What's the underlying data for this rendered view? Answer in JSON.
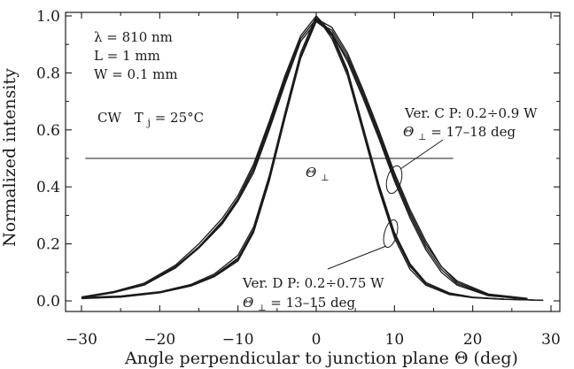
{
  "chart_data": {
    "type": "line",
    "xlabel": "Angle perpendicular to junction plane Θ (deg)",
    "ylabel": "Normalized intensity",
    "xlim": [
      -30,
      30
    ],
    "ylim": [
      0.0,
      1.0
    ],
    "x_ticks": [
      "−30",
      "−20",
      "−10",
      "0",
      "10",
      "20",
      "30"
    ],
    "y_ticks": [
      "0.0",
      "0.2",
      "0.4",
      "0.6",
      "0.8",
      "1.0"
    ],
    "grid": false,
    "params": {
      "lambda": "λ = 810 nm",
      "length": "L = 1 mm",
      "width": "W = 0.1 mm"
    },
    "cw_label": "CW",
    "tj_label": "T",
    "tj_sub": "j",
    "tj_value": " = 25°C",
    "theta_symbol": "Θ",
    "perp_symbol": "⊥",
    "ver_c": {
      "line1": "Ver. C  P: 0.2÷0.9 W",
      "line2_value": " = 17–18 deg"
    },
    "ver_d": {
      "line1": "Ver. D  P: 0.2÷0.75 W",
      "line2_value": " = 13–15 deg"
    },
    "half_max_level": 0.5,
    "half_max_line_x": [
      -29.5,
      17.5
    ],
    "series": [
      {
        "group": "Ver. C",
        "curves": [
          {
            "x": [
              -30,
              -26,
              -22,
              -18,
              -15,
              -12,
              -10,
              -8,
              -6,
              -4,
              -2,
              0,
              2,
              4,
              6,
              8,
              10,
              12,
              14,
              16,
              18,
              22,
              27
            ],
            "y": [
              0.012,
              0.03,
              0.058,
              0.12,
              0.19,
              0.28,
              0.36,
              0.47,
              0.62,
              0.78,
              0.92,
              0.99,
              0.94,
              0.85,
              0.72,
              0.58,
              0.43,
              0.3,
              0.19,
              0.11,
              0.06,
              0.02,
              0.008
            ]
          },
          {
            "x": [
              -30,
              -26,
              -22,
              -18,
              -15,
              -12,
              -10,
              -8,
              -6,
              -4,
              -2,
              0,
              2,
              4,
              6,
              8,
              10,
              12,
              14,
              16,
              18,
              22,
              27
            ],
            "y": [
              0.01,
              0.028,
              0.055,
              0.115,
              0.185,
              0.27,
              0.35,
              0.45,
              0.6,
              0.76,
              0.91,
              0.98,
              0.95,
              0.86,
              0.73,
              0.59,
              0.44,
              0.31,
              0.2,
              0.12,
              0.065,
              0.022,
              0.008
            ]
          },
          {
            "x": [
              -30,
              -26,
              -22,
              -18,
              -15,
              -12,
              -10,
              -8,
              -6,
              -4,
              -2,
              0,
              2,
              4,
              6,
              8,
              10,
              12,
              14,
              16,
              18,
              22,
              27
            ],
            "y": [
              0.014,
              0.032,
              0.062,
              0.125,
              0.2,
              0.29,
              0.37,
              0.48,
              0.63,
              0.79,
              0.93,
              1.0,
              0.94,
              0.84,
              0.71,
              0.57,
              0.42,
              0.29,
              0.18,
              0.1,
              0.055,
              0.018,
              0.006
            ]
          },
          {
            "x": [
              -30,
              -26,
              -22,
              -18,
              -15,
              -12,
              -10,
              -8,
              -6,
              -4,
              -2,
              0,
              2,
              4,
              6,
              8,
              10,
              12,
              14,
              16,
              18,
              22,
              27
            ],
            "y": [
              0.011,
              0.029,
              0.056,
              0.118,
              0.188,
              0.275,
              0.355,
              0.46,
              0.61,
              0.77,
              0.92,
              0.99,
              0.96,
              0.87,
              0.74,
              0.6,
              0.45,
              0.32,
              0.21,
              0.12,
              0.07,
              0.024,
              0.009
            ]
          }
        ]
      },
      {
        "group": "Ver. D",
        "curves": [
          {
            "x": [
              -30,
              -25,
              -20,
              -16,
              -13,
              -10,
              -8,
              -6,
              -4,
              -2,
              0,
              2,
              4,
              6,
              8,
              10,
              12,
              14,
              17,
              20,
              24,
              29
            ],
            "y": [
              0.01,
              0.015,
              0.03,
              0.055,
              0.09,
              0.15,
              0.25,
              0.43,
              0.65,
              0.86,
              0.99,
              0.93,
              0.8,
              0.6,
              0.4,
              0.23,
              0.12,
              0.06,
              0.025,
              0.012,
              0.006,
              0.002
            ]
          },
          {
            "x": [
              -30,
              -25,
              -20,
              -16,
              -13,
              -10,
              -8,
              -6,
              -4,
              -2,
              0,
              2,
              4,
              6,
              8,
              10,
              12,
              14,
              17,
              20,
              24,
              29
            ],
            "y": [
              0.008,
              0.013,
              0.028,
              0.052,
              0.085,
              0.14,
              0.24,
              0.42,
              0.64,
              0.85,
              0.98,
              0.94,
              0.81,
              0.61,
              0.41,
              0.24,
              0.13,
              0.065,
              0.028,
              0.013,
              0.006,
              0.002
            ]
          },
          {
            "x": [
              -30,
              -25,
              -20,
              -16,
              -13,
              -10,
              -8,
              -6,
              -4,
              -2,
              0,
              2,
              4,
              6,
              8,
              10,
              12,
              14,
              17,
              20,
              24,
              29
            ],
            "y": [
              0.012,
              0.017,
              0.032,
              0.058,
              0.095,
              0.16,
              0.26,
              0.44,
              0.66,
              0.87,
              1.0,
              0.92,
              0.79,
              0.59,
              0.39,
              0.22,
              0.11,
              0.055,
              0.022,
              0.011,
              0.005,
              0.002
            ]
          },
          {
            "x": [
              -30,
              -25,
              -20,
              -16,
              -13,
              -10,
              -8,
              -6,
              -4,
              -2,
              0,
              2,
              4,
              6,
              8,
              10,
              12,
              14,
              17,
              20,
              24,
              29
            ],
            "y": [
              0.009,
              0.014,
              0.029,
              0.054,
              0.088,
              0.145,
              0.245,
              0.425,
              0.645,
              0.855,
              0.985,
              0.935,
              0.805,
              0.605,
              0.405,
              0.235,
              0.125,
              0.06,
              0.026,
              0.012,
              0.006,
              0.002
            ]
          }
        ]
      }
    ]
  }
}
